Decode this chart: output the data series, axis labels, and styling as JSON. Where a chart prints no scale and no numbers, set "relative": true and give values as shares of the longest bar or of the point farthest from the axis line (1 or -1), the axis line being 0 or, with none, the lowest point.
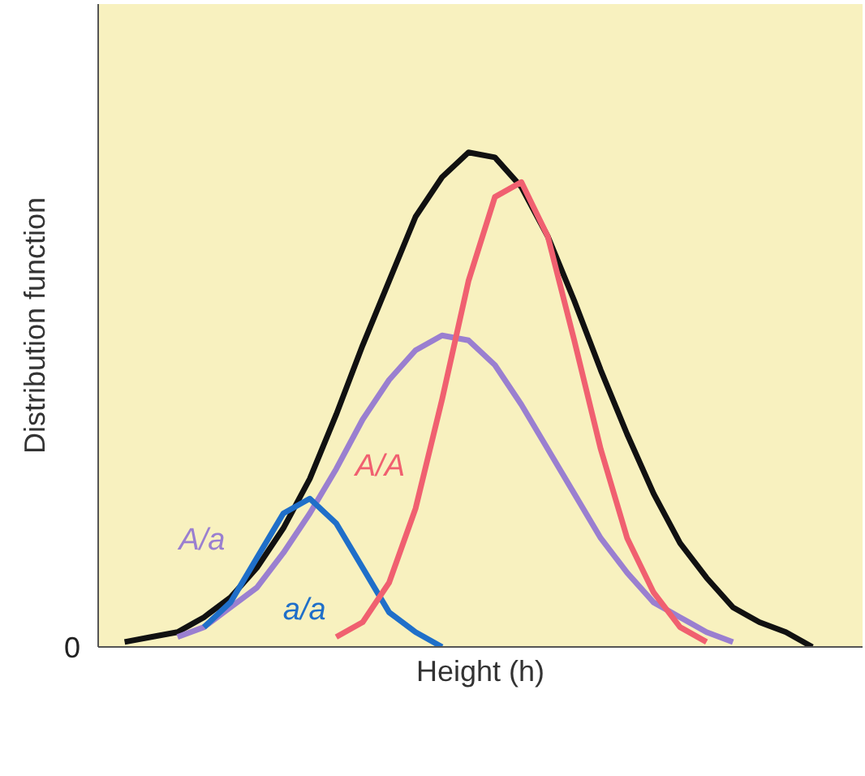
{
  "chart_data": {
    "type": "line",
    "relative": true,
    "xlabel": "Height (h)",
    "ylabel": "Distribution function",
    "annotations": [
      "0"
    ],
    "marker": "none",
    "line_style": "solid",
    "categories": [
      null,
      null,
      null,
      null,
      null,
      null,
      null,
      null,
      null,
      null,
      null,
      null,
      null,
      null,
      null,
      null,
      null,
      null,
      null,
      null,
      null,
      null,
      null,
      null,
      null,
      null,
      null
    ],
    "series": [
      {
        "color": "#111111",
        "values": [
          0.01,
          0.02,
          0.03,
          0.06,
          0.1,
          0.16,
          0.24,
          0.34,
          0.47,
          0.61,
          0.74,
          0.87,
          0.95,
          1.0,
          0.99,
          0.93,
          0.83,
          0.7,
          0.56,
          0.43,
          0.31,
          0.21,
          0.14,
          0.08,
          0.05,
          0.03,
          0.0
        ]
      },
      {
        "name": "A/a",
        "color": "#9a7fd0",
        "values": [
          null,
          null,
          0.02,
          0.04,
          0.08,
          0.12,
          0.19,
          0.27,
          0.36,
          0.46,
          0.54,
          0.6,
          0.63,
          0.62,
          0.57,
          0.49,
          0.4,
          0.31,
          0.22,
          0.15,
          0.09,
          0.06,
          0.03,
          0.01,
          null,
          null,
          null
        ]
      },
      {
        "name": "a/a",
        "color": "#1f6fc9",
        "values": [
          null,
          null,
          null,
          0.04,
          0.09,
          0.18,
          0.27,
          0.3,
          0.25,
          0.16,
          0.07,
          0.03,
          0.0,
          null,
          null,
          null,
          null,
          null,
          null,
          null,
          null,
          null,
          null,
          null,
          null,
          null,
          null
        ]
      },
      {
        "name": "A/A",
        "color": "#f06070",
        "values": [
          null,
          null,
          null,
          null,
          null,
          null,
          null,
          null,
          0.02,
          0.05,
          0.13,
          0.28,
          0.5,
          0.74,
          0.91,
          0.94,
          0.83,
          0.62,
          0.4,
          0.22,
          0.11,
          0.04,
          0.01,
          null,
          null,
          null,
          null
        ]
      }
    ]
  }
}
